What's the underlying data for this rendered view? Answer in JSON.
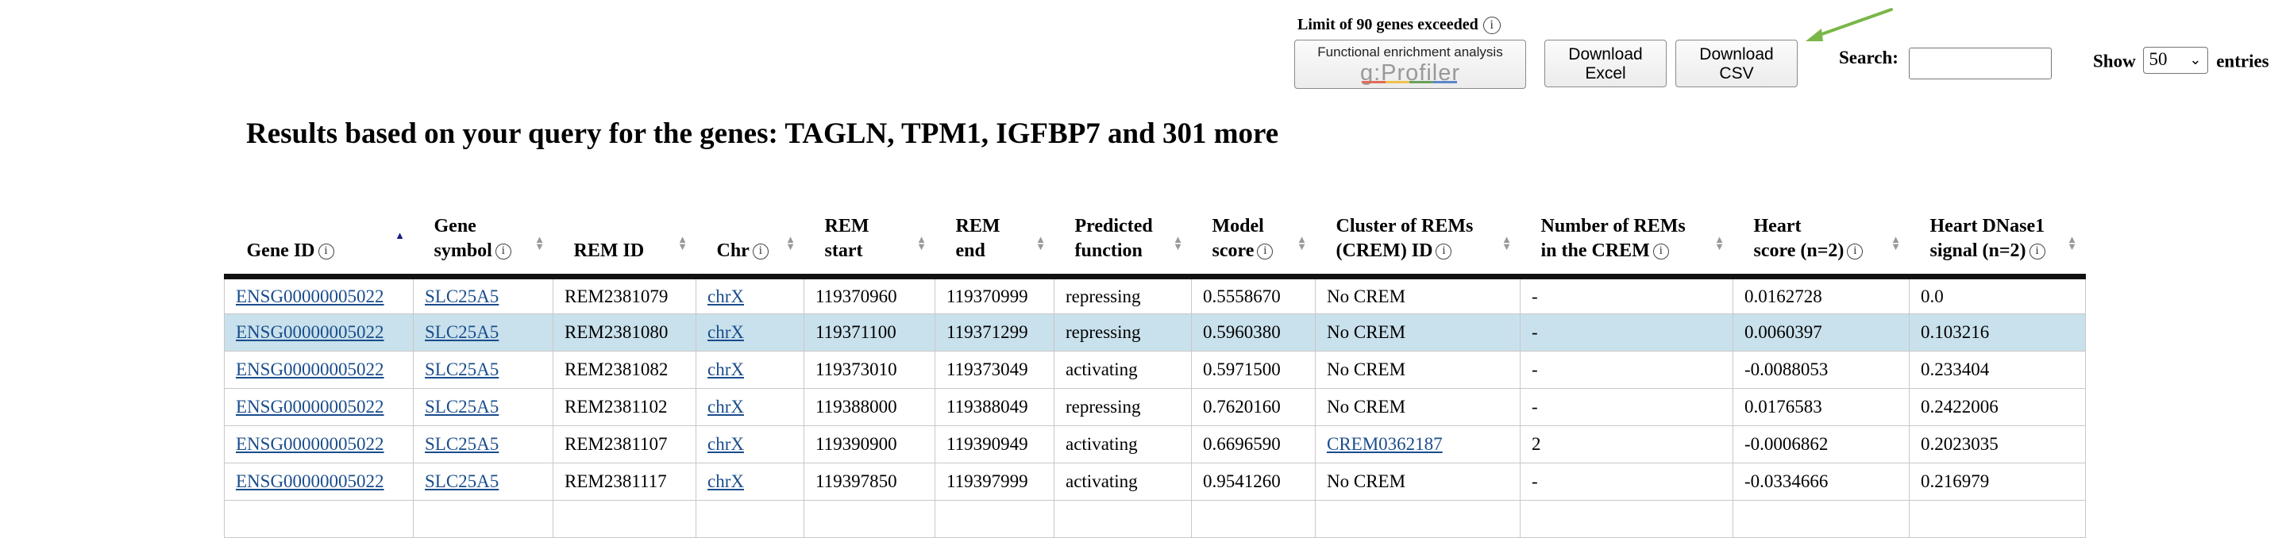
{
  "toolbar": {
    "limit_note": "Limit of 90 genes exceeded",
    "gprofiler_top": "Functional enrichment analysis",
    "gprofiler_logo": "g:Profiler",
    "download_excel_line1": "Download",
    "download_excel_line2": "Excel",
    "download_csv_line1": "Download",
    "download_csv_line2": "CSV",
    "search_label": "Search:",
    "search_value": "",
    "show_label": "Show",
    "show_value": "50",
    "entries_label": "entries",
    "arrow_color": "#7ab648"
  },
  "results_title": "Results based on your query for the genes: TAGLN, TPM1, IGFBP7 and 301 more",
  "table": {
    "headers": [
      {
        "line1": "Gene ID",
        "line2": "",
        "info": true
      },
      {
        "line1": "Gene",
        "line2": "symbol",
        "info": true
      },
      {
        "line1": "REM ID",
        "line2": "",
        "info": false
      },
      {
        "line1": "Chr",
        "line2": "",
        "info": true
      },
      {
        "line1": "REM",
        "line2": "start",
        "info": false
      },
      {
        "line1": "REM",
        "line2": "end",
        "info": false
      },
      {
        "line1": "Predicted",
        "line2": "function",
        "info": false
      },
      {
        "line1": "Model",
        "line2": "score",
        "info": true
      },
      {
        "line1": "Cluster of REMs",
        "line2": "(CREM) ID",
        "info": true
      },
      {
        "line1": "Number of REMs",
        "line2": "in the CREM",
        "info": true
      },
      {
        "line1": "Heart",
        "line2": "score (n=2)",
        "info": true
      },
      {
        "line1": "Heart DNase1",
        "line2": "signal (n=2)",
        "info": true
      }
    ],
    "rows": [
      [
        "ENSG00000005022",
        "SLC25A5",
        "REM2381079",
        "chrX",
        "119370960",
        "119370999",
        "repressing",
        "0.5558670",
        "No CREM",
        "-",
        "0.0162728",
        "0.0"
      ],
      [
        "ENSG00000005022",
        "SLC25A5",
        "REM2381080",
        "chrX",
        "119371100",
        "119371299",
        "repressing",
        "0.5960380",
        "No CREM",
        "-",
        "0.0060397",
        "0.103216"
      ],
      [
        "ENSG00000005022",
        "SLC25A5",
        "REM2381082",
        "chrX",
        "119373010",
        "119373049",
        "activating",
        "0.5971500",
        "No CREM",
        "-",
        "-0.0088053",
        "0.233404"
      ],
      [
        "ENSG00000005022",
        "SLC25A5",
        "REM2381102",
        "chrX",
        "119388000",
        "119388049",
        "repressing",
        "0.7620160",
        "No CREM",
        "-",
        "0.0176583",
        "0.2422006"
      ],
      [
        "ENSG00000005022",
        "SLC25A5",
        "REM2381107",
        "chrX",
        "119390900",
        "119390949",
        "activating",
        "0.6696590",
        "CREM0362187",
        "2",
        "-0.0006862",
        "0.2023035"
      ],
      [
        "ENSG00000005022",
        "SLC25A5",
        "REM2381117",
        "chrX",
        "119397850",
        "119397999",
        "activating",
        "0.9541260",
        "No CREM",
        "-",
        "-0.0334666",
        "0.216979"
      ],
      [
        "",
        "",
        "",
        "",
        "",
        "",
        "",
        "",
        "",
        "",
        "",
        ""
      ]
    ],
    "highlight_row": 1,
    "highlight_color": "#c9e1ec",
    "link_color": "#1a4d8c"
  }
}
